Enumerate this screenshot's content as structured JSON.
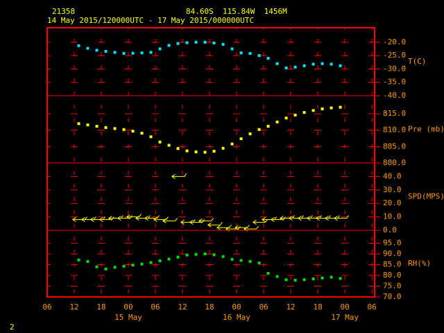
{
  "header": {
    "station": "21358",
    "location": "84.60S  115.84W  1456M",
    "period": "14 May 2015/120000UTC - 17 May 2015/000000UTC",
    "page": "2"
  },
  "x_axis": {
    "xlim": [
      0,
      72.6
    ],
    "xticks": [
      {
        "value": 0,
        "label": "06"
      },
      {
        "value": 6,
        "label": "12"
      },
      {
        "value": 12,
        "label": "18"
      },
      {
        "value": 18,
        "label": "00"
      },
      {
        "value": 24,
        "label": "06"
      },
      {
        "value": 30,
        "label": "12"
      },
      {
        "value": 36,
        "label": "18"
      },
      {
        "value": 42,
        "label": "00"
      },
      {
        "value": 48,
        "label": "06"
      },
      {
        "value": 54,
        "label": "12"
      },
      {
        "value": 60,
        "label": "18"
      },
      {
        "value": 66,
        "label": "00"
      },
      {
        "value": 72,
        "label": "06"
      }
    ],
    "date_labels": [
      {
        "value": 18,
        "label": "15 May"
      },
      {
        "value": 42,
        "label": "16 May"
      },
      {
        "value": 66,
        "label": "17 May"
      }
    ]
  },
  "chart_data": [
    {
      "type": "scatter",
      "label": "T(C)",
      "color": "#00e5ff",
      "ylim": [
        -40,
        -14.6
      ],
      "yticks": [
        {
          "value": -20,
          "label": "-20.0"
        },
        {
          "value": -25,
          "label": "-25.0"
        },
        {
          "value": -30,
          "label": "-30.0"
        },
        {
          "value": -35,
          "label": "-35.0"
        },
        {
          "value": -40,
          "label": "-40.0"
        }
      ],
      "x": [
        7,
        9,
        11,
        13,
        15,
        17,
        19,
        21,
        23,
        25,
        27,
        29,
        31,
        33,
        35,
        37,
        39,
        41,
        43,
        45,
        47,
        49,
        51,
        53,
        55,
        57,
        59,
        61,
        63,
        65
      ],
      "values": [
        -21.3,
        -22.3,
        -23,
        -23.4,
        -23.8,
        -24.2,
        -24.1,
        -24,
        -23.8,
        -22.5,
        -21.2,
        -20.5,
        -20.2,
        -20,
        -20,
        -20.3,
        -20.8,
        -22.5,
        -24,
        -24.2,
        -25,
        -26,
        -28,
        -29.6,
        -29.3,
        -28.8,
        -28.2,
        -28,
        -28.2,
        -28.8
      ]
    },
    {
      "type": "scatter",
      "label": "Pre (mb)",
      "color": "#ffff00",
      "ylim": [
        800,
        820.5
      ],
      "yticks": [
        {
          "value": 815,
          "label": "815.0"
        },
        {
          "value": 810,
          "label": "810.0"
        },
        {
          "value": 805,
          "label": "805.0"
        },
        {
          "value": 800,
          "label": "800.0"
        }
      ],
      "x": [
        7,
        9,
        11,
        13,
        15,
        17,
        19,
        21,
        23,
        25,
        27,
        29,
        31,
        33,
        35,
        37,
        39,
        41,
        43,
        45,
        47,
        49,
        51,
        53,
        55,
        57,
        59,
        61,
        63,
        65
      ],
      "values": [
        812,
        811.6,
        811.2,
        810.8,
        810.5,
        810.2,
        809.7,
        809.1,
        808,
        806.4,
        805.4,
        804.4,
        803.7,
        803.4,
        803.3,
        803.6,
        804.5,
        805.8,
        807.4,
        808.9,
        810.2,
        811.2,
        812.5,
        813.7,
        814.6,
        815.4,
        816,
        816.5,
        816.8,
        817
      ]
    },
    {
      "type": "wind",
      "label": "SPD(MPS)",
      "color": "#ffff00",
      "ylim": [
        0,
        50
      ],
      "yticks": [
        {
          "value": 40,
          "label": "40.0"
        },
        {
          "value": 30,
          "label": "30.0"
        },
        {
          "value": 20,
          "label": "20.0"
        },
        {
          "value": 10,
          "label": "10.0"
        },
        {
          "value": 0,
          "label": "0.0"
        }
      ],
      "x": [
        7,
        9,
        11,
        13,
        15,
        17,
        19,
        21,
        23,
        25,
        27,
        29,
        31,
        33,
        35,
        37,
        39,
        41,
        43,
        45,
        47,
        49,
        51,
        53,
        55,
        57,
        59,
        61,
        63,
        65
      ],
      "values": [
        8,
        8,
        8,
        8,
        9,
        9,
        10,
        9,
        9,
        8,
        7,
        40,
        6,
        6,
        7,
        4,
        2,
        1,
        2,
        1,
        6,
        8,
        8,
        9,
        9,
        9,
        9,
        9,
        9,
        9
      ]
    },
    {
      "type": "scatter",
      "label": "RH(%)",
      "color": "#00e000",
      "ylim": [
        70,
        101
      ],
      "yticks": [
        {
          "value": 95,
          "label": "95.0"
        },
        {
          "value": 90,
          "label": "90.0"
        },
        {
          "value": 85,
          "label": "85.0"
        },
        {
          "value": 80,
          "label": "80.0"
        },
        {
          "value": 75,
          "label": "75.0"
        },
        {
          "value": 70,
          "label": "70.0"
        }
      ],
      "x": [
        7,
        9,
        11,
        13,
        15,
        17,
        19,
        21,
        23,
        25,
        27,
        29,
        31,
        33,
        35,
        37,
        39,
        41,
        43,
        45,
        47,
        49,
        51,
        53,
        55,
        57,
        59,
        61,
        63,
        65
      ],
      "values": [
        87.2,
        86.5,
        84,
        83,
        83.8,
        84.3,
        84.8,
        85.3,
        86,
        86.8,
        87.6,
        88.5,
        89.5,
        89.8,
        90,
        89.6,
        88.8,
        87.5,
        87,
        86.5,
        85.8,
        81,
        79.5,
        78,
        77.8,
        78,
        78.4,
        78.8,
        79.2,
        78.6
      ]
    }
  ]
}
